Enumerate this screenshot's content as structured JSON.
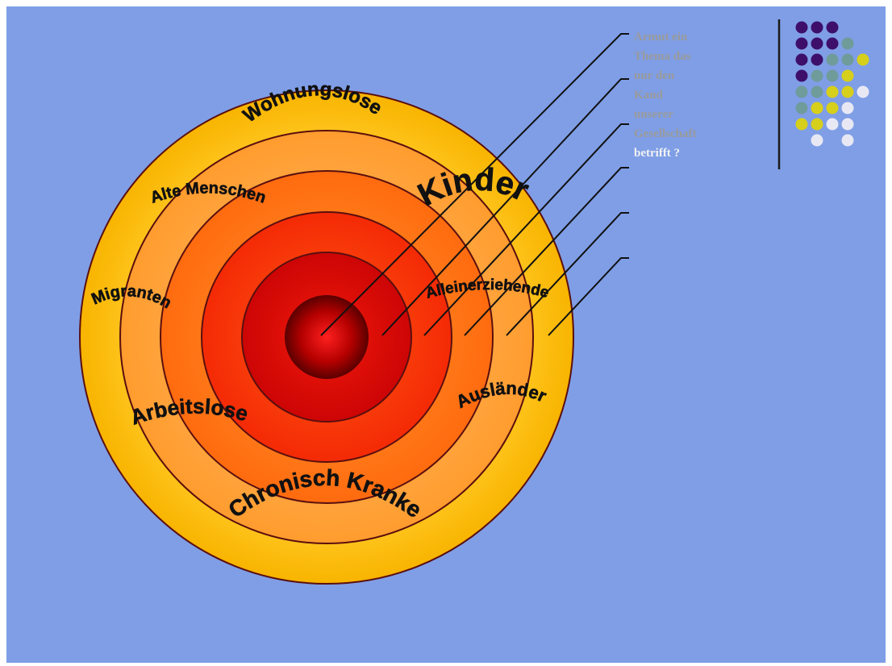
{
  "slide": {
    "background": "#7f9ee6",
    "question_lines": [
      "Armut ein",
      "Thema das",
      "nur den",
      "Kand",
      "unserer",
      "Gesellschaft",
      "betrifft ?"
    ]
  },
  "diagram": {
    "ring_colors": [
      "#ffc51f",
      "#ffa531",
      "#ff7a14",
      "#ff3a0a",
      "#dd0b0b",
      "#b10000"
    ],
    "labels": [
      {
        "id": "wohnungslose",
        "text": "Wohnungslose"
      },
      {
        "id": "alte-menschen",
        "text": "Alte Menschen"
      },
      {
        "id": "kinder",
        "text": "Kinder"
      },
      {
        "id": "migranten",
        "text": "Migranten"
      },
      {
        "id": "alleinerziehende",
        "text": "Alleinerziehende"
      },
      {
        "id": "arbeitslose",
        "text": "Arbeitslose"
      },
      {
        "id": "auslaender",
        "text": "Ausländer"
      },
      {
        "id": "chronisch-kranke",
        "text": "Chronisch Kranke"
      }
    ]
  },
  "decoration": {
    "dot_colors": {
      "purple": "#3d0f6b",
      "teal": "#6f9b9a",
      "yellow": "#d6cf1b",
      "white": "#e8e8f4"
    },
    "divider_color": "#1a1a1a"
  }
}
